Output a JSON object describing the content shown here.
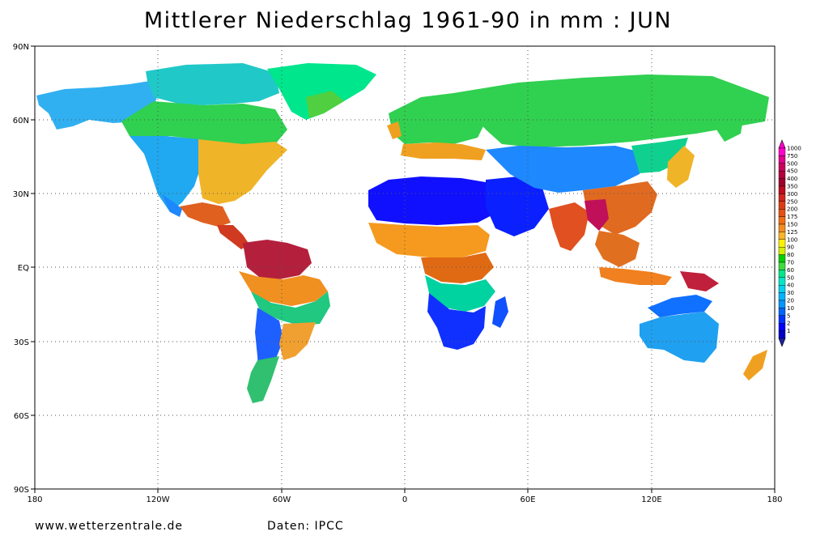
{
  "title": "Mittlerer Niederschlag 1961-90 in mm : JUN",
  "footer": {
    "site": "www.wetterzentrale.de",
    "source": "Daten: IPCC"
  },
  "axes": {
    "lat_labels": [
      "90N",
      "60N",
      "30N",
      "EQ",
      "30S",
      "60S",
      "90S"
    ],
    "lon_labels": [
      "180",
      "120W",
      "60W",
      "0",
      "60E",
      "120E",
      "180"
    ]
  },
  "colorbar": {
    "levels": [
      "1000",
      "750",
      "500",
      "450",
      "400",
      "350",
      "300",
      "250",
      "200",
      "175",
      "150",
      "125",
      "100",
      "90",
      "80",
      "70",
      "60",
      "50",
      "40",
      "30",
      "20",
      "10",
      "5",
      "2",
      "1"
    ],
    "colors": [
      "#ff00cc",
      "#e0008a",
      "#c8005a",
      "#b4003c",
      "#a0002a",
      "#c00a1e",
      "#d2231e",
      "#dc3c14",
      "#e65014",
      "#f06e14",
      "#f58c1e",
      "#fab428",
      "#fff000",
      "#d2f000",
      "#00d200",
      "#3cdc3c",
      "#00e68c",
      "#00e6c8",
      "#00d2f0",
      "#00b4ff",
      "#0096ff",
      "#0064ff",
      "#0032ff",
      "#0000ff",
      "#0000c8"
    ]
  },
  "map_colors": {
    "ocean": "#ffffff",
    "grid": "#555555"
  },
  "regions": [
    {
      "name": "arctic-canada",
      "color": "#20c8c8"
    },
    {
      "name": "alaska",
      "color": "#30b0f0"
    },
    {
      "name": "greenland",
      "color": "#00e68c"
    },
    {
      "name": "greenland-south",
      "color": "#50d040"
    },
    {
      "name": "canada-green",
      "color": "#30d050"
    },
    {
      "name": "us-west",
      "color": "#20a8f0"
    },
    {
      "name": "us-east",
      "color": "#f0b428"
    },
    {
      "name": "mexico",
      "color": "#e06020"
    },
    {
      "name": "mexico-dry",
      "color": "#1e88ff"
    },
    {
      "name": "central-america",
      "color": "#d03a20"
    },
    {
      "name": "amazon",
      "color": "#b4203c"
    },
    {
      "name": "amazon-orange",
      "color": "#f09020"
    },
    {
      "name": "south-america-green",
      "color": "#20c880"
    },
    {
      "name": "south-america-dry",
      "color": "#1e60ff"
    },
    {
      "name": "south-america-east",
      "color": "#f0a030"
    },
    {
      "name": "south-america-south",
      "color": "#30c070"
    },
    {
      "name": "sahara",
      "color": "#1010ff"
    },
    {
      "name": "sahel",
      "color": "#f59a1e"
    },
    {
      "name": "africa-central",
      "color": "#e06a14"
    },
    {
      "name": "africa-south",
      "color": "#1030ff"
    },
    {
      "name": "africa-green",
      "color": "#00d2a0"
    },
    {
      "name": "europe",
      "color": "#30d050"
    },
    {
      "name": "europe-south",
      "color": "#f0a020"
    },
    {
      "name": "arabia",
      "color": "#0a20ff"
    },
    {
      "name": "russia",
      "color": "#30d050"
    },
    {
      "name": "central-asia",
      "color": "#1e88ff"
    },
    {
      "name": "china",
      "color": "#e06a20"
    },
    {
      "name": "india",
      "color": "#e05020"
    },
    {
      "name": "bangladesh",
      "color": "#c0105a"
    },
    {
      "name": "east-asia-green",
      "color": "#10d090"
    },
    {
      "name": "southeast-asia",
      "color": "#e07020"
    },
    {
      "name": "indonesia",
      "color": "#f08020"
    },
    {
      "name": "new-guinea",
      "color": "#c0203c"
    },
    {
      "name": "australia",
      "color": "#20a0f0"
    },
    {
      "name": "australia-north",
      "color": "#1070ff"
    },
    {
      "name": "new-zealand",
      "color": "#f0a020"
    },
    {
      "name": "madagascar",
      "color": "#1050ff"
    },
    {
      "name": "japan",
      "color": "#f0b428"
    },
    {
      "name": "kamchatka",
      "color": "#30d050"
    },
    {
      "name": "uk",
      "color": "#f0a020"
    }
  ]
}
